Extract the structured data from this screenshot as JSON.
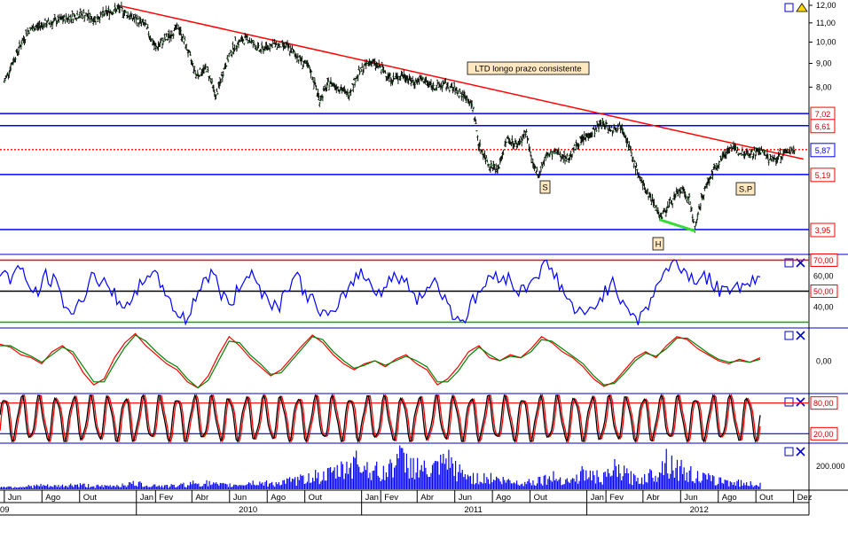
{
  "chart_data": {
    "type": "line",
    "price": {
      "axis_ticks": [
        "12,00",
        "11,00",
        "10,00",
        "9,00",
        "8,00"
      ],
      "tick_values": [
        12,
        11,
        10,
        9,
        8
      ],
      "levels": [
        {
          "label": "7,02",
          "value": 7.02,
          "style": "blue-line",
          "color": "#0000ff"
        },
        {
          "label": "6,61",
          "value": 6.61,
          "style": "blue-line",
          "color": "#0000ff"
        },
        {
          "label": "5,87",
          "value": 5.87,
          "style": "red-dotted",
          "color": "#ff0000"
        },
        {
          "label": "5,19",
          "value": 5.19,
          "style": "blue-line",
          "color": "#0000ff"
        },
        {
          "label": "3,95",
          "value": 3.95,
          "style": "blue-line",
          "color": "#0000ff"
        }
      ],
      "annotations": [
        "LTD longo prazo consistente",
        "S",
        "S.P",
        "H"
      ],
      "trendline": {
        "from": {
          "date": "2009-12-08",
          "value": 11.95
        },
        "to": {
          "date": "2012-12-17",
          "value": 5.6
        }
      },
      "divergence_line": {
        "from": {
          "date": "2012-04-28",
          "value": 4.15
        },
        "to": {
          "date": "2012-06-25",
          "value": 3.92
        }
      },
      "series": [
        {
          "date": "2009-06-01",
          "value": 8.2
        },
        {
          "date": "2009-06-20",
          "value": 9.4
        },
        {
          "date": "2009-07-10",
          "value": 10.6
        },
        {
          "date": "2009-08-01",
          "value": 10.9
        },
        {
          "date": "2009-08-25",
          "value": 11.1
        },
        {
          "date": "2009-09-15",
          "value": 11.3
        },
        {
          "date": "2009-10-05",
          "value": 11.5
        },
        {
          "date": "2009-10-25",
          "value": 11.2
        },
        {
          "date": "2009-11-15",
          "value": 11.6
        },
        {
          "date": "2009-12-05",
          "value": 11.8
        },
        {
          "date": "2009-12-25",
          "value": 11.3
        },
        {
          "date": "2010-01-15",
          "value": 10.9
        },
        {
          "date": "2010-02-01",
          "value": 9.7
        },
        {
          "date": "2010-02-20",
          "value": 10.2
        },
        {
          "date": "2010-03-10",
          "value": 10.8
        },
        {
          "date": "2010-03-25",
          "value": 9.6
        },
        {
          "date": "2010-04-08",
          "value": 8.5
        },
        {
          "date": "2010-04-25",
          "value": 8.8
        },
        {
          "date": "2010-05-10",
          "value": 7.6
        },
        {
          "date": "2010-05-25",
          "value": 8.9
        },
        {
          "date": "2010-06-10",
          "value": 9.9
        },
        {
          "date": "2010-06-30",
          "value": 10.2
        },
        {
          "date": "2010-07-20",
          "value": 9.6
        },
        {
          "date": "2010-08-10",
          "value": 9.9
        },
        {
          "date": "2010-09-01",
          "value": 9.8
        },
        {
          "date": "2010-09-20",
          "value": 9.3
        },
        {
          "date": "2010-10-10",
          "value": 8.7
        },
        {
          "date": "2010-10-25",
          "value": 7.5
        },
        {
          "date": "2010-11-10",
          "value": 8.2
        },
        {
          "date": "2010-11-25",
          "value": 8.0
        },
        {
          "date": "2010-12-10",
          "value": 7.7
        },
        {
          "date": "2010-12-28",
          "value": 8.6
        },
        {
          "date": "2011-01-15",
          "value": 9.1
        },
        {
          "date": "2011-02-01",
          "value": 8.8
        },
        {
          "date": "2011-02-20",
          "value": 8.3
        },
        {
          "date": "2011-03-10",
          "value": 8.5
        },
        {
          "date": "2011-03-25",
          "value": 8.2
        },
        {
          "date": "2011-04-10",
          "value": 8.3
        },
        {
          "date": "2011-04-28",
          "value": 8.0
        },
        {
          "date": "2011-05-15",
          "value": 8.1
        },
        {
          "date": "2011-06-01",
          "value": 7.9
        },
        {
          "date": "2011-06-20",
          "value": 7.6
        },
        {
          "date": "2011-07-01",
          "value": 7.2
        },
        {
          "date": "2011-07-10",
          "value": 6.0
        },
        {
          "date": "2011-07-25",
          "value": 5.5
        },
        {
          "date": "2011-08-10",
          "value": 5.3
        },
        {
          "date": "2011-08-25",
          "value": 6.2
        },
        {
          "date": "2011-09-10",
          "value": 6.0
        },
        {
          "date": "2011-09-25",
          "value": 6.4
        },
        {
          "date": "2011-10-05",
          "value": 5.4
        },
        {
          "date": "2011-10-15",
          "value": 5.2
        },
        {
          "date": "2011-10-28",
          "value": 5.7
        },
        {
          "date": "2011-11-15",
          "value": 5.8
        },
        {
          "date": "2011-12-01",
          "value": 5.6
        },
        {
          "date": "2011-12-20",
          "value": 6.1
        },
        {
          "date": "2012-01-10",
          "value": 6.4
        },
        {
          "date": "2012-01-25",
          "value": 6.7
        },
        {
          "date": "2012-02-10",
          "value": 6.5
        },
        {
          "date": "2012-02-28",
          "value": 6.6
        },
        {
          "date": "2012-03-15",
          "value": 5.6
        },
        {
          "date": "2012-04-01",
          "value": 4.9
        },
        {
          "date": "2012-04-15",
          "value": 4.6
        },
        {
          "date": "2012-04-30",
          "value": 4.2
        },
        {
          "date": "2012-05-15",
          "value": 4.5
        },
        {
          "date": "2012-06-01",
          "value": 4.8
        },
        {
          "date": "2012-06-15",
          "value": 4.6
        },
        {
          "date": "2012-06-25",
          "value": 3.95
        },
        {
          "date": "2012-07-05",
          "value": 4.6
        },
        {
          "date": "2012-07-15",
          "value": 5.0
        },
        {
          "date": "2012-08-01",
          "value": 5.5
        },
        {
          "date": "2012-08-20",
          "value": 5.95
        },
        {
          "date": "2012-09-05",
          "value": 5.8
        },
        {
          "date": "2012-09-25",
          "value": 5.75
        },
        {
          "date": "2012-10-10",
          "value": 5.85
        },
        {
          "date": "2012-10-25",
          "value": 5.55
        },
        {
          "date": "2012-11-10",
          "value": 5.7
        },
        {
          "date": "2012-11-25",
          "value": 5.85
        },
        {
          "date": "2012-12-03",
          "value": 5.87
        }
      ]
    },
    "rsi": {
      "axis_ticks": [
        "70,00",
        "60,00",
        "50,00",
        "40,00"
      ],
      "tick_values": [
        70,
        60,
        50,
        40
      ],
      "levels": [
        {
          "value": 70,
          "color": "#ff0000"
        },
        {
          "value": 50,
          "color": "#000000"
        },
        {
          "value": 30,
          "color": "#00aa00"
        }
      ],
      "ylim": [
        28,
        72
      ],
      "values": [
        63,
        58,
        66,
        54,
        48,
        60,
        55,
        41,
        35,
        47,
        62,
        55,
        50,
        44,
        38,
        52,
        64,
        57,
        49,
        36,
        31,
        45,
        58,
        61,
        47,
        41,
        56,
        63,
        52,
        45,
        39,
        54,
        60,
        48,
        42,
        35,
        33,
        46,
        57,
        62,
        55,
        49,
        57,
        60,
        53,
        46,
        51,
        58,
        44,
        35,
        31,
        43,
        52,
        59,
        61,
        57,
        49,
        55,
        62,
        67,
        59,
        47,
        38,
        33,
        40,
        48,
        55,
        46,
        38,
        31,
        42,
        56,
        64,
        69,
        62,
        57,
        60,
        54,
        48,
        55,
        52,
        58,
        56
      ]
    },
    "oscillator": {
      "axis_ticks": [
        "0,00"
      ],
      "tick_values": [
        0
      ],
      "ylim": [
        -1,
        1
      ],
      "series": [
        {
          "color": "#ff0000",
          "values": [
            0.55,
            0.45,
            0.2,
            0.1,
            -0.1,
            0.3,
            0.5,
            0.2,
            -0.4,
            -0.8,
            -0.6,
            0.1,
            0.6,
            0.9,
            0.5,
            0.2,
            -0.1,
            -0.3,
            -0.7,
            -0.9,
            -0.5,
            0.2,
            0.8,
            0.5,
            0.1,
            -0.2,
            -0.5,
            -0.3,
            0.1,
            0.5,
            0.85,
            0.6,
            0.2,
            -0.1,
            -0.3,
            -0.1,
            0.0,
            -0.2,
            0.05,
            0.2,
            -0.1,
            -0.3,
            -0.8,
            -0.6,
            -0.2,
            0.3,
            0.5,
            0.1,
            0.0,
            0.2,
            0.1,
            0.4,
            0.8,
            0.6,
            0.3,
            0.1,
            -0.2,
            -0.6,
            -0.85,
            -0.7,
            -0.3,
            0.1,
            0.3,
            0.1,
            0.5,
            0.8,
            0.7,
            0.4,
            0.2,
            0.0,
            -0.1,
            0.05,
            -0.05,
            0.1
          ]
        },
        {
          "color": "#008000",
          "values": [
            0.5,
            0.5,
            0.3,
            0.15,
            -0.05,
            0.2,
            0.45,
            0.3,
            -0.2,
            -0.7,
            -0.7,
            -0.1,
            0.45,
            0.85,
            0.65,
            0.3,
            0.0,
            -0.2,
            -0.6,
            -0.9,
            -0.65,
            0.0,
            0.65,
            0.6,
            0.2,
            -0.1,
            -0.45,
            -0.4,
            0.0,
            0.4,
            0.8,
            0.7,
            0.3,
            0.0,
            -0.25,
            -0.15,
            0.0,
            -0.15,
            0.0,
            0.15,
            0.0,
            -0.2,
            -0.7,
            -0.7,
            -0.35,
            0.15,
            0.45,
            0.2,
            0.0,
            0.15,
            0.1,
            0.3,
            0.7,
            0.65,
            0.4,
            0.15,
            -0.1,
            -0.5,
            -0.8,
            -0.75,
            -0.4,
            0.0,
            0.25,
            0.15,
            0.4,
            0.75,
            0.75,
            0.5,
            0.25,
            0.05,
            -0.05,
            0.0,
            -0.05,
            0.05
          ]
        }
      ]
    },
    "stochastic": {
      "axis_ticks": [
        "80,00",
        "20,00"
      ],
      "tick_values": [
        80,
        20
      ],
      "levels": [
        {
          "value": 80,
          "color": "#ff0000"
        },
        {
          "value": 20,
          "color": "#0000ff"
        }
      ],
      "ylim": [
        5,
        95
      ],
      "cycles": 44,
      "series": [
        {
          "color": "#ff0000",
          "shift": 0.55
        },
        {
          "color": "#000000",
          "shift": 0.0
        }
      ]
    },
    "volume": {
      "axis_ticks": [
        "200.000"
      ],
      "tick_values": [
        200000
      ],
      "ylim": [
        0,
        380000
      ],
      "values": [
        30000,
        22000,
        25000,
        28000,
        35000,
        26000,
        31000,
        40000,
        38000,
        29000,
        27000,
        33000,
        45000,
        52000,
        41000,
        36000,
        30000,
        32000,
        48000,
        60000,
        55000,
        40000,
        37000,
        44000,
        61000,
        58000,
        52000,
        63000,
        75000,
        90000,
        130000,
        110000,
        150000,
        180000,
        260000,
        220000,
        170000,
        140000,
        300000,
        240000,
        210000,
        160000,
        190000,
        250000,
        160000,
        120000,
        95000,
        110000,
        85000,
        70000,
        60000,
        72000,
        90000,
        110000,
        95000,
        80000,
        150000,
        120000,
        100000,
        180000,
        140000,
        90000,
        110000,
        160000,
        280000,
        200000,
        150000,
        120000,
        95000,
        80000,
        70000,
        60000,
        50000,
        45000
      ]
    },
    "x_axis": {
      "month_labels": [
        {
          "label": "Jun",
          "date": "2009-06-01"
        },
        {
          "label": "Ago",
          "date": "2009-08-01"
        },
        {
          "label": "Out",
          "date": "2009-10-01"
        },
        {
          "label": "Jan",
          "date": "2010-01-01"
        },
        {
          "label": "Fev",
          "date": "2010-02-01"
        },
        {
          "label": "Abr",
          "date": "2010-04-01"
        },
        {
          "label": "Jun",
          "date": "2010-06-01"
        },
        {
          "label": "Ago",
          "date": "2010-08-01"
        },
        {
          "label": "Out",
          "date": "2010-10-01"
        },
        {
          "label": "Jan",
          "date": "2011-01-01"
        },
        {
          "label": "Fev",
          "date": "2011-02-01"
        },
        {
          "label": "Abr",
          "date": "2011-04-01"
        },
        {
          "label": "Jun",
          "date": "2011-06-01"
        },
        {
          "label": "Ago",
          "date": "2011-08-01"
        },
        {
          "label": "Out",
          "date": "2011-10-01"
        },
        {
          "label": "Jan",
          "date": "2012-01-01"
        },
        {
          "label": "Fev",
          "date": "2012-02-01"
        },
        {
          "label": "Abr",
          "date": "2012-04-01"
        },
        {
          "label": "Jun",
          "date": "2012-06-01"
        },
        {
          "label": "Ago",
          "date": "2012-08-01"
        },
        {
          "label": "Out",
          "date": "2012-10-01"
        },
        {
          "label": "Dez",
          "date": "2012-12-01"
        }
      ],
      "year_labels": [
        {
          "label": "09",
          "date": "2009-06-01"
        },
        {
          "label": "2010",
          "date": "2010-07-01"
        },
        {
          "label": "2011",
          "date": "2011-07-01"
        },
        {
          "label": "2012",
          "date": "2012-07-01"
        }
      ]
    }
  }
}
